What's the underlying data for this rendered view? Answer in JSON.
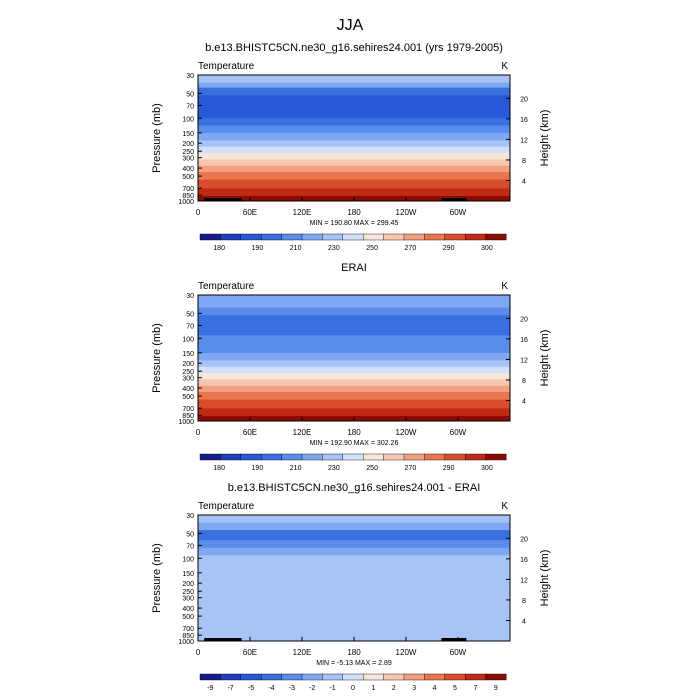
{
  "figure": {
    "title": "JJA"
  },
  "chart_data": [
    {
      "type": "heatmap",
      "title": "b.e13.BHISTC5CN.ne30_g16.sehires24.001 (yrs 1979-2005)",
      "left_label": "Temperature",
      "right_label": "K",
      "xlabel": "",
      "ylabel": "Pressure (mb)",
      "ylabel_right": "Height (km)",
      "x_ticks": [
        "0",
        "60E",
        "120E",
        "180",
        "120W",
        "60W"
      ],
      "y_ticks": [
        "30",
        "50",
        "70",
        "100",
        "150",
        "200",
        "250",
        "300",
        "400",
        "500",
        "700",
        "850",
        "1000"
      ],
      "y_ticks_right": [
        "20",
        "16",
        "12",
        "8",
        "4"
      ],
      "stats": "MIN = 190.80  MAX = 299.45",
      "colorbar": {
        "labels": [
          "180",
          "190",
          "210",
          "230",
          "250",
          "270",
          "290",
          "300"
        ],
        "colors": [
          "#1a1a8a",
          "#1f3fb8",
          "#2958d6",
          "#3a6fe0",
          "#5a8cec",
          "#7ea8f2",
          "#a8c4f6",
          "#d2e0fa",
          "#f7e6dc",
          "#f6c6ae",
          "#f2a080",
          "#ea7650",
          "#d94d2c",
          "#c02a14",
          "#8c0a04"
        ]
      },
      "bands": [
        {
          "y0": 0.0,
          "y1": 0.06,
          "c": 6
        },
        {
          "y0": 0.06,
          "y1": 0.1,
          "c": 5
        },
        {
          "y0": 0.1,
          "y1": 0.16,
          "c": 3
        },
        {
          "y0": 0.16,
          "y1": 0.34,
          "c": 2
        },
        {
          "y0": 0.34,
          "y1": 0.4,
          "c": 3
        },
        {
          "y0": 0.4,
          "y1": 0.46,
          "c": 4
        },
        {
          "y0": 0.46,
          "y1": 0.52,
          "c": 5
        },
        {
          "y0": 0.52,
          "y1": 0.57,
          "c": 6
        },
        {
          "y0": 0.57,
          "y1": 0.62,
          "c": 7
        },
        {
          "y0": 0.62,
          "y1": 0.67,
          "c": 8
        },
        {
          "y0": 0.67,
          "y1": 0.72,
          "c": 9
        },
        {
          "y0": 0.72,
          "y1": 0.77,
          "c": 10
        },
        {
          "y0": 0.77,
          "y1": 0.83,
          "c": 11
        },
        {
          "y0": 0.83,
          "y1": 0.9,
          "c": 12
        },
        {
          "y0": 0.9,
          "y1": 0.96,
          "c": 13
        },
        {
          "y0": 0.96,
          "y1": 1.0,
          "c": 14
        }
      ],
      "terrain": true
    },
    {
      "type": "heatmap",
      "title": "ERAI",
      "left_label": "Temperature",
      "right_label": "K",
      "xlabel": "",
      "ylabel": "Pressure (mb)",
      "ylabel_right": "Height (km)",
      "x_ticks": [
        "0",
        "60E",
        "120E",
        "180",
        "120W",
        "60W"
      ],
      "y_ticks": [
        "30",
        "50",
        "70",
        "100",
        "150",
        "200",
        "250",
        "300",
        "400",
        "500",
        "700",
        "850",
        "1000"
      ],
      "y_ticks_right": [
        "20",
        "16",
        "12",
        "8",
        "4"
      ],
      "stats": "MIN = 192.90  MAX = 302.26",
      "colorbar": {
        "labels": [
          "180",
          "190",
          "210",
          "230",
          "250",
          "270",
          "290",
          "300"
        ],
        "colors": [
          "#1a1a8a",
          "#1f3fb8",
          "#2958d6",
          "#3a6fe0",
          "#5a8cec",
          "#7ea8f2",
          "#a8c4f6",
          "#d2e0fa",
          "#f7e6dc",
          "#f6c6ae",
          "#f2a080",
          "#ea7650",
          "#d94d2c",
          "#c02a14",
          "#8c0a04"
        ]
      },
      "bands": [
        {
          "y0": 0.0,
          "y1": 0.06,
          "c": 5
        },
        {
          "y0": 0.06,
          "y1": 0.1,
          "c": 5
        },
        {
          "y0": 0.1,
          "y1": 0.16,
          "c": 4
        },
        {
          "y0": 0.16,
          "y1": 0.32,
          "c": 3
        },
        {
          "y0": 0.32,
          "y1": 0.4,
          "c": 4
        },
        {
          "y0": 0.4,
          "y1": 0.46,
          "c": 4
        },
        {
          "y0": 0.46,
          "y1": 0.52,
          "c": 5
        },
        {
          "y0": 0.52,
          "y1": 0.57,
          "c": 6
        },
        {
          "y0": 0.57,
          "y1": 0.62,
          "c": 7
        },
        {
          "y0": 0.62,
          "y1": 0.67,
          "c": 8
        },
        {
          "y0": 0.67,
          "y1": 0.72,
          "c": 9
        },
        {
          "y0": 0.72,
          "y1": 0.77,
          "c": 10
        },
        {
          "y0": 0.77,
          "y1": 0.83,
          "c": 11
        },
        {
          "y0": 0.83,
          "y1": 0.9,
          "c": 12
        },
        {
          "y0": 0.9,
          "y1": 0.96,
          "c": 13
        },
        {
          "y0": 0.96,
          "y1": 1.0,
          "c": 14
        }
      ],
      "terrain": false
    },
    {
      "type": "heatmap",
      "title": "b.e13.BHISTC5CN.ne30_g16.sehires24.001 - ERAI",
      "left_label": "Temperature",
      "right_label": "K",
      "xlabel": "",
      "ylabel": "Pressure (mb)",
      "ylabel_right": "Height (km)",
      "x_ticks": [
        "0",
        "60E",
        "120E",
        "180",
        "120W",
        "60W"
      ],
      "y_ticks": [
        "30",
        "50",
        "70",
        "100",
        "150",
        "200",
        "250",
        "300",
        "400",
        "500",
        "700",
        "850",
        "1000"
      ],
      "y_ticks_right": [
        "20",
        "16",
        "12",
        "8",
        "4"
      ],
      "stats": "MIN =  -5.13  MAX =   2.89",
      "colorbar": {
        "labels": [
          "-9",
          "-7",
          "-5",
          "-4",
          "-3",
          "-2",
          "-1",
          "0",
          "1",
          "2",
          "3",
          "4",
          "5",
          "7",
          "9"
        ],
        "colors": [
          "#1a1a8a",
          "#1f3fb8",
          "#2958d6",
          "#3a6fe0",
          "#5a8cec",
          "#7ea8f2",
          "#a8c4f6",
          "#d2e0fa",
          "#f7e6dc",
          "#f6c6ae",
          "#f2a080",
          "#ea7650",
          "#d94d2c",
          "#c02a14",
          "#8c0a04"
        ]
      },
      "bands": [
        {
          "y0": 0.0,
          "y1": 0.06,
          "c": 6
        },
        {
          "y0": 0.06,
          "y1": 0.12,
          "c": 5
        },
        {
          "y0": 0.12,
          "y1": 0.2,
          "c": 3
        },
        {
          "y0": 0.2,
          "y1": 0.26,
          "c": 4
        },
        {
          "y0": 0.26,
          "y1": 0.32,
          "c": 5
        },
        {
          "y0": 0.32,
          "y1": 0.45,
          "c": 6
        },
        {
          "y0": 0.45,
          "y1": 0.85,
          "c": 6
        },
        {
          "y0": 0.85,
          "y1": 1.0,
          "c": 6
        }
      ],
      "terrain": true
    }
  ]
}
